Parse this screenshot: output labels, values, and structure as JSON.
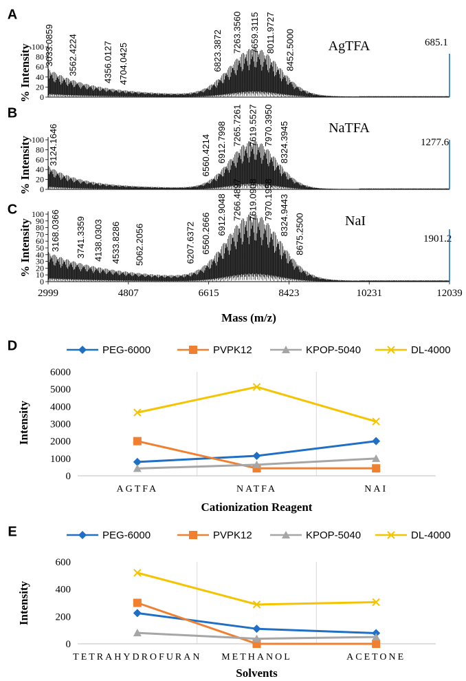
{
  "chart_data": [
    {
      "type": "line",
      "kind": "mass_spectrum",
      "panel": "A",
      "reagent": "AgTFA",
      "ref_value": "685.1",
      "ylabel": "% Intensity",
      "yticks": [
        "0",
        "20",
        "40",
        "60",
        "80",
        "100"
      ],
      "ylim": [
        0,
        100
      ],
      "xlim": [
        2999,
        12039
      ],
      "peak_labels": [
        "3033.0859",
        "3562.4224",
        "4356.0127",
        "4704.0425",
        "6823.3872",
        "7263.3560",
        "7659.3115",
        "8011.9727",
        "8452.5000"
      ],
      "peak_x": [
        3033.0859,
        3562.4224,
        4356.0127,
        4704.0425,
        6823.3872,
        7263.356,
        7659.3115,
        8011.9727,
        8452.5
      ],
      "envelope": {
        "center": 7650,
        "width": 560,
        "peak": 95,
        "low_base": 45,
        "low_decay": 900,
        "floor": 12
      }
    },
    {
      "type": "line",
      "kind": "mass_spectrum",
      "panel": "B",
      "reagent": "NaTFA",
      "ref_value": "1277.6",
      "ylabel": "% Intensity",
      "yticks": [
        "0",
        "20",
        "40",
        "60",
        "80",
        "100"
      ],
      "ylim": [
        0,
        100
      ],
      "xlim": [
        2999,
        12039
      ],
      "peak_labels": [
        "3124.1646",
        "6560.4214",
        "6912.7998",
        "7265.7261",
        "7619.5527",
        "7970.3950",
        "8324.3945"
      ],
      "peak_x": [
        3124.1646,
        6560.4214,
        6912.7998,
        7265.7261,
        7619.5527,
        7970.395,
        8324.3945
      ],
      "envelope": {
        "center": 7620,
        "width": 520,
        "peak": 97,
        "low_base": 40,
        "low_decay": 700,
        "floor": 8
      }
    },
    {
      "type": "line",
      "kind": "mass_spectrum",
      "panel": "C",
      "reagent": "NaI",
      "ref_value": "1901.2",
      "ylabel": "% Intensity",
      "yticks": [
        "0",
        "10",
        "20",
        "30",
        "40",
        "50",
        "60",
        "70",
        "80",
        "90",
        "100"
      ],
      "ylim": [
        0,
        100
      ],
      "xlim": [
        2999,
        12039
      ],
      "xticks": [
        "2999",
        "4807",
        "6615",
        "8423",
        "10231",
        "12039"
      ],
      "xlabel": "Mass (m/z)",
      "peak_labels": [
        "3168.0366",
        "3741.3359",
        "4138.0303",
        "4533.8286",
        "5062.2056",
        "6207.6372",
        "6560.2666",
        "6912.9048",
        "7266.4897",
        "7619.0908",
        "7970.1958",
        "8324.9443",
        "8675.2500"
      ],
      "peak_x": [
        3168.0366,
        3741.3359,
        4138.0303,
        4533.8286,
        5062.2056,
        6207.6372,
        6560.2666,
        6912.9048,
        7266.4897,
        7619.0908,
        7970.1958,
        8324.9443,
        8675.25
      ],
      "envelope": {
        "center": 7620,
        "width": 600,
        "peak": 97,
        "low_base": 30,
        "low_decay": 1200,
        "floor": 14
      }
    },
    {
      "type": "line",
      "panel": "D",
      "categories": [
        "AGTFA",
        "NATFA",
        "NAI"
      ],
      "xlabel": "Cationization Reagent",
      "ylabel": "Intensity",
      "ylim": [
        0,
        6000
      ],
      "yticks": [
        "0",
        "1000",
        "2000",
        "3000",
        "4000",
        "5000",
        "6000"
      ],
      "series": [
        {
          "name": "PEG-6000",
          "values": [
            800,
            1150,
            2000
          ],
          "color": "#1f6fc5",
          "marker": "diamond"
        },
        {
          "name": "PVPK12",
          "values": [
            2000,
            430,
            430
          ],
          "color": "#f08030",
          "marker": "square"
        },
        {
          "name": "KPOP-5040",
          "values": [
            420,
            640,
            1000
          ],
          "color": "#a6a6a6",
          "marker": "triangle"
        },
        {
          "name": "DL-4000",
          "values": [
            3650,
            5130,
            3130
          ],
          "color": "#f5c400",
          "marker": "x"
        }
      ]
    },
    {
      "type": "line",
      "panel": "E",
      "categories": [
        "TETRAHYDROFURAN",
        "METHANOL",
        "ACETONE"
      ],
      "xlabel": "Solvents",
      "ylabel": "Intensity",
      "ylim": [
        0,
        600
      ],
      "yticks": [
        "0",
        "200",
        "400",
        "600"
      ],
      "series": [
        {
          "name": "PEG-6000",
          "values": [
            225,
            110,
            78
          ],
          "color": "#1f6fc5",
          "marker": "diamond"
        },
        {
          "name": "PVPK12",
          "values": [
            300,
            0,
            0
          ],
          "color": "#f08030",
          "marker": "square"
        },
        {
          "name": "KPOP-5040",
          "values": [
            80,
            37,
            50
          ],
          "color": "#a6a6a6",
          "marker": "triangle"
        },
        {
          "name": "DL-4000",
          "values": [
            520,
            288,
            305
          ],
          "color": "#f5c400",
          "marker": "x"
        }
      ]
    }
  ]
}
